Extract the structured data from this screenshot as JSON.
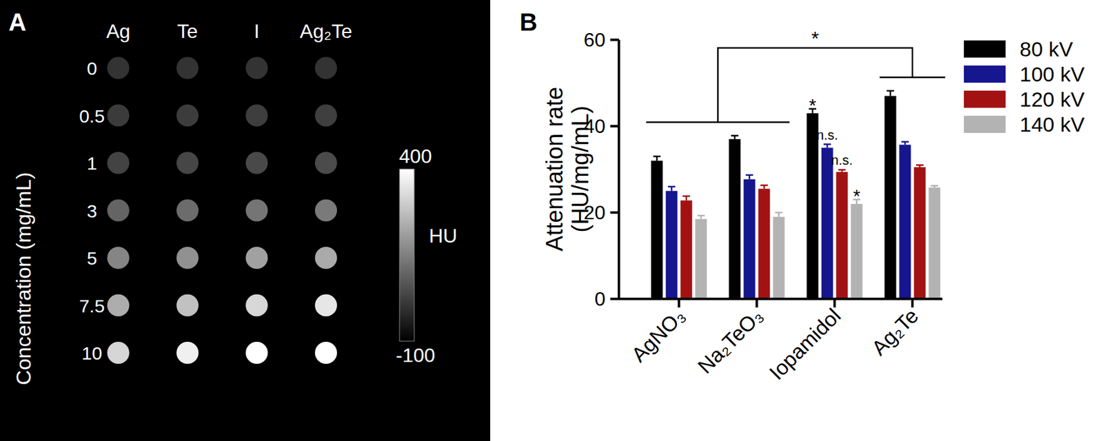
{
  "chart_data": [
    {
      "type": "heatmap",
      "title": "A",
      "x": [
        "Ag",
        "Te",
        "I",
        "Ag₂Te"
      ],
      "y": [
        0,
        0.5,
        1,
        3,
        5,
        7.5,
        10
      ],
      "y_label": "Concentration (mg/mL)",
      "cells": [
        [
          0,
          0,
          0,
          0
        ],
        [
          16,
          18,
          21,
          23
        ],
        [
          32,
          37,
          43,
          47
        ],
        [
          96,
          111,
          129,
          140
        ],
        [
          160,
          185,
          215,
          234
        ],
        [
          240,
          278,
          322,
          351
        ],
        [
          320,
          370,
          400,
          400
        ]
      ],
      "colorbar_range": [
        -100,
        400
      ],
      "colorbar_ticks": [
        -100,
        400
      ],
      "colorbar_label": "HU"
    },
    {
      "type": "bar",
      "title": "B",
      "categories": [
        "AgNO₃",
        "Na₂TeO₃",
        "Iopamidol",
        "Ag₂Te"
      ],
      "y_label": [
        "Attenuation rate",
        "(HU/mg/mL)"
      ],
      "ylim": [
        0,
        60
      ],
      "yticks": [
        0,
        20,
        40,
        60
      ],
      "grid": false,
      "legend": "right",
      "data_labels": false,
      "series": [
        {
          "name": "80 kV",
          "color": "#000000",
          "values": [
            32,
            37,
            43,
            47
          ],
          "errors": [
            1,
            0.8,
            1,
            1.2
          ]
        },
        {
          "name": "100 kV",
          "color": "#16168f",
          "values": [
            25,
            27.7,
            35,
            35.7
          ],
          "errors": [
            1,
            1,
            0.8,
            0.7
          ]
        },
        {
          "name": "120 kV",
          "color": "#a31212",
          "values": [
            22.8,
            25.5,
            29.4,
            30.5
          ],
          "errors": [
            1,
            0.8,
            0.5,
            0.5
          ]
        },
        {
          "name": "140 kV",
          "color": "#b3b3b3",
          "values": [
            18.5,
            19,
            22,
            25.8
          ],
          "errors": [
            0.8,
            1,
            1,
            0.4
          ]
        }
      ],
      "annotations": [
        {
          "text": "*",
          "category": "Iopamidol",
          "series": "80 kV"
        },
        {
          "text": "n.s.",
          "category": "Iopamidol",
          "series": "100 kV"
        },
        {
          "text": "n.s.",
          "category": "Iopamidol",
          "series": "120 kV"
        },
        {
          "text": "*",
          "category": "Iopamidol",
          "series": "140 kV"
        },
        {
          "text": "*",
          "bracket": [
            [
              "AgNO₃",
              "Na₂TeO₃"
            ],
            [
              "Ag₂Te"
            ]
          ]
        }
      ]
    }
  ]
}
